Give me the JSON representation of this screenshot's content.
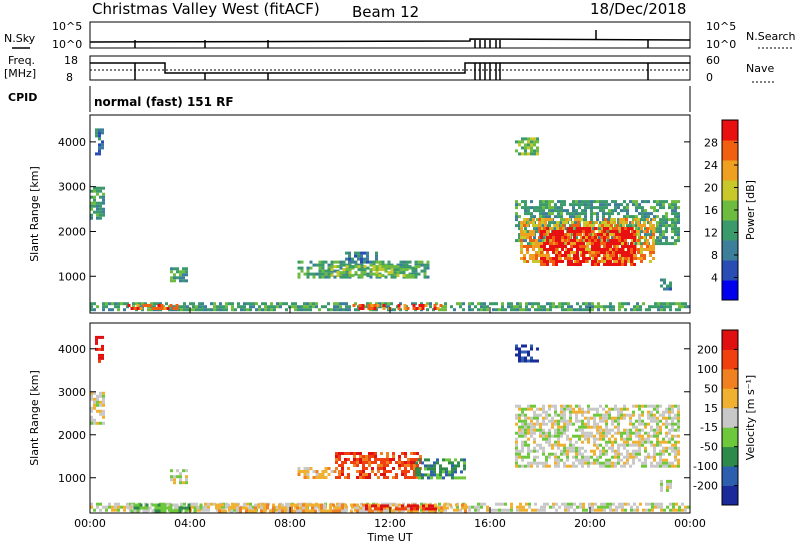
{
  "header": {
    "station": "Christmas Valley West (fitACF)",
    "beam": "Beam 12",
    "date": "18/Dec/2018"
  },
  "status_panel": {
    "nsky_label": "N.Sky",
    "nsky_ticks": [
      "10^5",
      "10^0"
    ],
    "nsearch_label": "N.Search",
    "nsearch_ticks": [
      "10^5",
      "10^0"
    ],
    "freq_label": "Freq.",
    "freq_unit": "[MHz]",
    "freq_ticks": [
      "18",
      "8"
    ],
    "nave_label": "Nave",
    "nave_ticks": [
      "60",
      "0"
    ],
    "cpid_label": "CPID",
    "cpid_value": "normal (fast) 151 RF"
  },
  "chart_data": [
    {
      "type": "heatmap",
      "title": "",
      "ylabel": "Slant Range [km]",
      "xlabel": "",
      "x_ticks": [
        "00:00",
        "04:00",
        "08:00",
        "12:00",
        "16:00",
        "20:00",
        "00:00"
      ],
      "y_ticks": [
        "1000",
        "2000",
        "3000",
        "4000"
      ],
      "ylim": [
        180,
        4600
      ],
      "xlim_hours": [
        0,
        24
      ],
      "colorbar": {
        "label": "Power [dB]",
        "ticks": [
          "4",
          "8",
          "12",
          "16",
          "20",
          "24",
          "28"
        ],
        "colors": [
          "#0000ee",
          "#2a4db5",
          "#3d7e9a",
          "#3a9a6b",
          "#6dbb3f",
          "#c8c82a",
          "#f0a020",
          "#f06010",
          "#e81010"
        ]
      },
      "regions": [
        {
          "t0": 0.0,
          "t1": 0.5,
          "r0": 2300,
          "r1": 3000,
          "level": 3
        },
        {
          "t0": 0.2,
          "t1": 0.45,
          "r0": 3700,
          "r1": 4300,
          "level": 2
        },
        {
          "t0": 3.2,
          "t1": 3.9,
          "r0": 900,
          "r1": 1200,
          "level": 3
        },
        {
          "t0": 8.3,
          "t1": 13.5,
          "r0": 950,
          "r1": 1350,
          "level": 3
        },
        {
          "t0": 9.5,
          "t1": 13.2,
          "r0": 1000,
          "r1": 1250,
          "level": 4
        },
        {
          "t0": 10.2,
          "t1": 11.5,
          "r0": 1300,
          "r1": 1550,
          "level": 2
        },
        {
          "t0": 0.0,
          "t1": 24.0,
          "r0": 220,
          "r1": 420,
          "level": 3
        },
        {
          "t0": 1.5,
          "t1": 3.5,
          "r0": 250,
          "r1": 380,
          "level": 7
        },
        {
          "t0": 10.5,
          "t1": 14.0,
          "r0": 250,
          "r1": 380,
          "level": 7
        },
        {
          "t0": 17.0,
          "t1": 17.9,
          "r0": 3700,
          "r1": 4100,
          "level": 4
        },
        {
          "t0": 17.0,
          "t1": 23.5,
          "r0": 1700,
          "r1": 2700,
          "level": 3
        },
        {
          "t0": 17.2,
          "t1": 22.5,
          "r0": 1350,
          "r1": 2300,
          "level": 6
        },
        {
          "t0": 18.0,
          "t1": 21.8,
          "r0": 1250,
          "r1": 2100,
          "level": 8
        },
        {
          "t0": 22.8,
          "t1": 23.2,
          "r0": 700,
          "r1": 950,
          "level": 2
        }
      ]
    },
    {
      "type": "heatmap",
      "title": "",
      "ylabel": "Slant Range [km]",
      "xlabel": "Time UT",
      "x_ticks": [
        "00:00",
        "04:00",
        "08:00",
        "12:00",
        "16:00",
        "20:00",
        "00:00"
      ],
      "y_ticks": [
        "1000",
        "2000",
        "3000",
        "4000"
      ],
      "ylim": [
        180,
        4600
      ],
      "xlim_hours": [
        0,
        24
      ],
      "colorbar": {
        "label": "Velocity [m s⁻¹]",
        "ticks": [
          "200",
          "100",
          "50",
          "15",
          "-15",
          "-50",
          "-100",
          "-200"
        ],
        "colors": [
          "#1a2a9a",
          "#2e5fae",
          "#2e8a4a",
          "#6ec83c",
          "#c8c8c8",
          "#f0b030",
          "#f08020",
          "#f04010",
          "#e01010"
        ]
      },
      "regions": [
        {
          "t0": 0.0,
          "t1": 0.5,
          "r0": 2300,
          "r1": 3000,
          "level": 4
        },
        {
          "t0": 0.2,
          "t1": 0.45,
          "r0": 3700,
          "r1": 4300,
          "level": 8
        },
        {
          "t0": 3.2,
          "t1": 3.9,
          "r0": 900,
          "r1": 1200,
          "level": 4
        },
        {
          "t0": 8.3,
          "t1": 9.8,
          "r0": 1000,
          "r1": 1250,
          "level": 5
        },
        {
          "t0": 9.8,
          "t1": 13.2,
          "r0": 1000,
          "r1": 1600,
          "level": 7
        },
        {
          "t0": 13.0,
          "t1": 15.0,
          "r0": 1000,
          "r1": 1450,
          "level": 2
        },
        {
          "t0": 0.0,
          "t1": 24.0,
          "r0": 220,
          "r1": 420,
          "level": 4
        },
        {
          "t0": 1.5,
          "t1": 4.5,
          "r0": 250,
          "r1": 400,
          "level": 3
        },
        {
          "t0": 5.0,
          "t1": 15.0,
          "r0": 250,
          "r1": 400,
          "level": 5
        },
        {
          "t0": 11.0,
          "t1": 14.0,
          "r0": 280,
          "r1": 380,
          "level": 8
        },
        {
          "t0": 17.0,
          "t1": 17.9,
          "r0": 3700,
          "r1": 4100,
          "level": 0
        },
        {
          "t0": 17.0,
          "t1": 23.5,
          "r0": 1300,
          "r1": 2700,
          "level": 4
        },
        {
          "t0": 22.8,
          "t1": 23.2,
          "r0": 700,
          "r1": 950,
          "level": 4
        }
      ]
    }
  ]
}
